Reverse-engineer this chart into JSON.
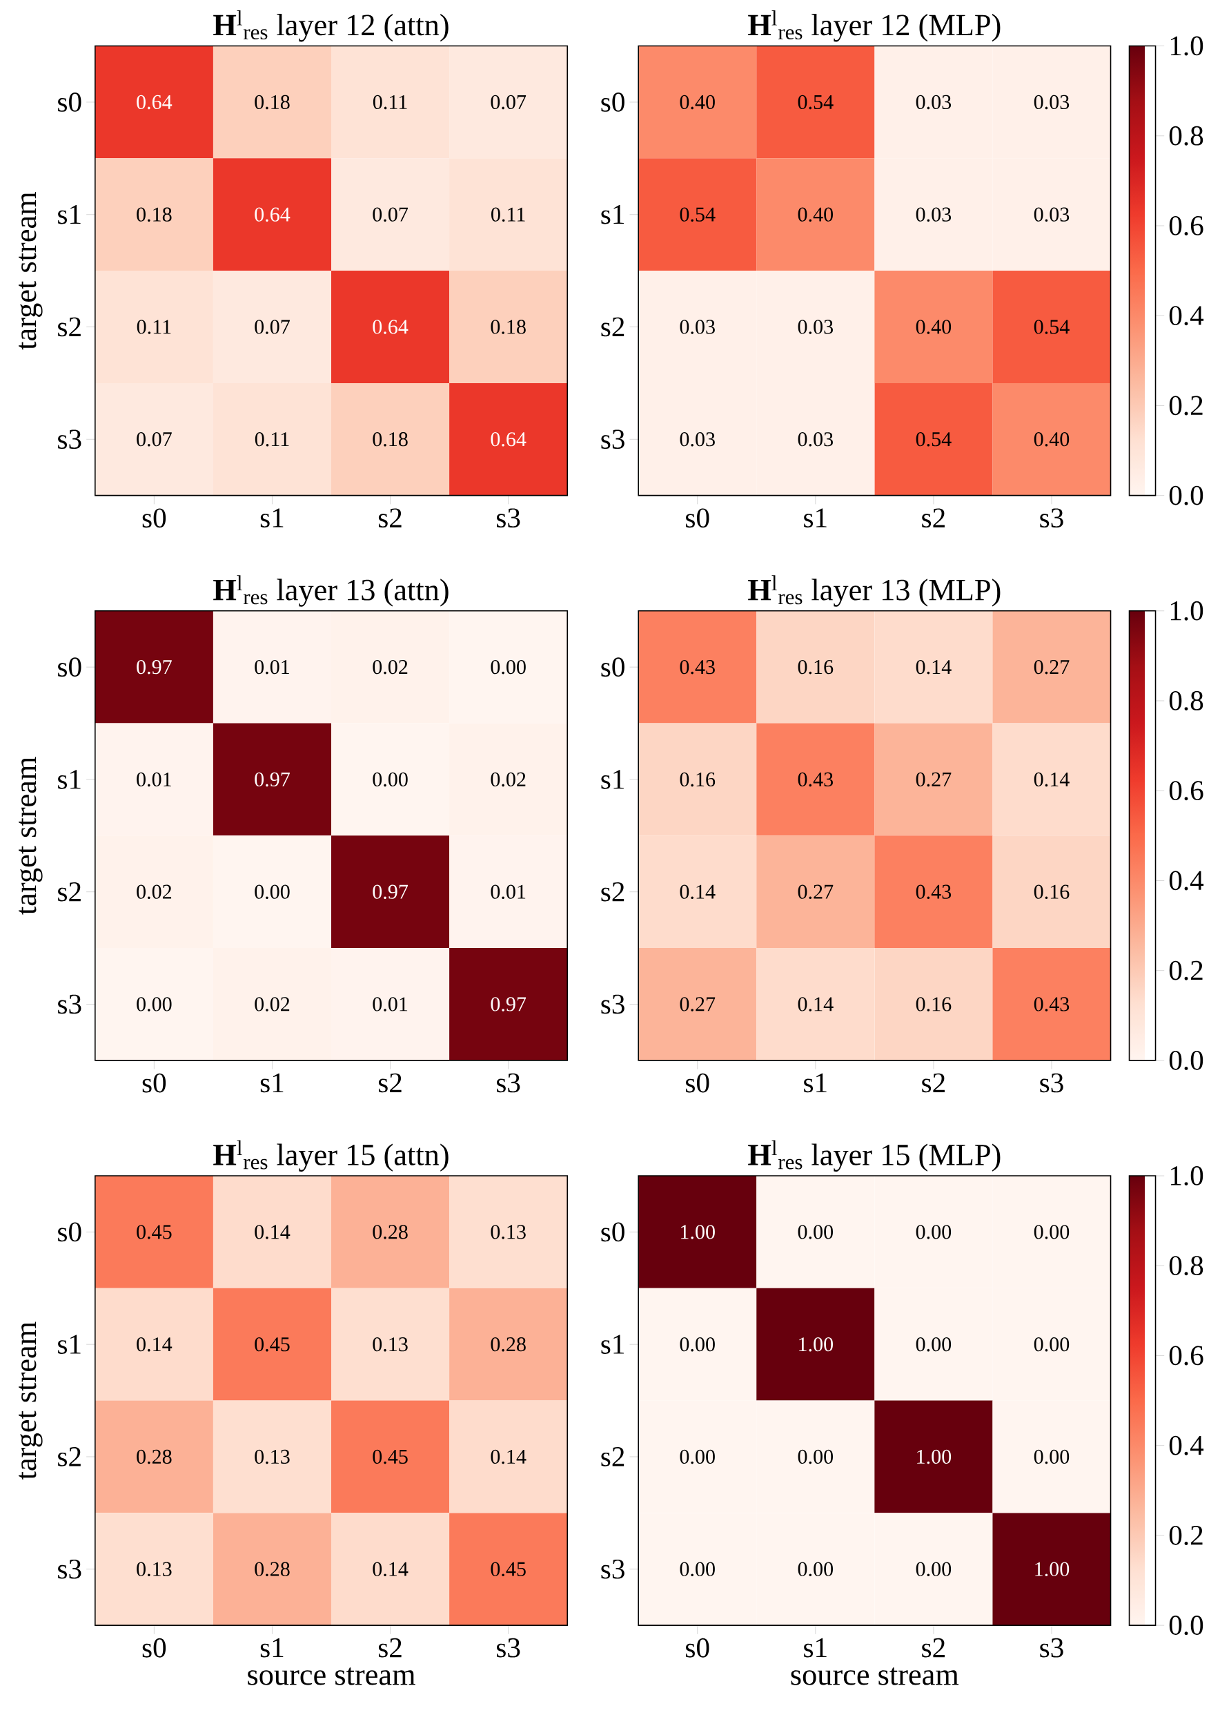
{
  "chart_data": [
    {
      "type": "heatmap",
      "title": "**H**$^{l}$$_{res}$ layer 12 (attn)",
      "ylabel": "target stream",
      "categories": [
        "s0",
        "s1",
        "s2",
        "s3"
      ],
      "y_categories": [
        "s0",
        "s1",
        "s2",
        "s3"
      ],
      "cells": [
        [
          0.64,
          0.18,
          0.11,
          0.07
        ],
        [
          0.18,
          0.64,
          0.07,
          0.11
        ],
        [
          0.11,
          0.07,
          0.64,
          0.18
        ],
        [
          0.07,
          0.11,
          0.18,
          0.64
        ]
      ],
      "cell_labels": [
        [
          "0.64",
          "0.18",
          "0.11",
          "0.07"
        ],
        [
          "0.18",
          "0.64",
          "0.07",
          "0.11"
        ],
        [
          "0.11",
          "0.07",
          "0.64",
          "0.18"
        ],
        [
          "0.07",
          "0.11",
          "0.18",
          "0.64"
        ]
      ]
    },
    {
      "type": "heatmap",
      "title": "**H**$^{l}$$_{res}$ layer 12 (MLP)",
      "categories": [
        "s0",
        "s1",
        "s2",
        "s3"
      ],
      "y_categories": [
        "s0",
        "s1",
        "s2",
        "s3"
      ],
      "clim": [
        0,
        1
      ],
      "cticks": [
        {
          "value": 0,
          "label": "0.0"
        },
        {
          "value": 0.2,
          "label": "0.2"
        },
        {
          "value": 0.4,
          "label": "0.4"
        },
        {
          "value": 0.6,
          "label": "0.6"
        },
        {
          "value": 0.8,
          "label": "0.8"
        },
        {
          "value": 1,
          "label": "1.0"
        }
      ],
      "cells": [
        [
          0.4,
          0.54,
          0.03,
          0.03
        ],
        [
          0.54,
          0.4,
          0.03,
          0.03
        ],
        [
          0.03,
          0.03,
          0.4,
          0.54
        ],
        [
          0.03,
          0.03,
          0.54,
          0.4
        ]
      ],
      "cell_labels": [
        [
          "0.40",
          "0.54",
          "0.03",
          "0.03"
        ],
        [
          "0.54",
          "0.40",
          "0.03",
          "0.03"
        ],
        [
          "0.03",
          "0.03",
          "0.40",
          "0.54"
        ],
        [
          "0.03",
          "0.03",
          "0.54",
          "0.40"
        ]
      ]
    },
    {
      "type": "heatmap",
      "title": "**H**$^{l}$$_{res}$ layer 13 (attn)",
      "ylabel": "target stream",
      "categories": [
        "s0",
        "s1",
        "s2",
        "s3"
      ],
      "y_categories": [
        "s0",
        "s1",
        "s2",
        "s3"
      ],
      "cells": [
        [
          0.97,
          0.01,
          0.02,
          0.0
        ],
        [
          0.01,
          0.97,
          0.0,
          0.02
        ],
        [
          0.02,
          0.0,
          0.97,
          0.01
        ],
        [
          0.0,
          0.02,
          0.01,
          0.97
        ]
      ],
      "cell_labels": [
        [
          "0.97",
          "0.01",
          "0.02",
          "0.00"
        ],
        [
          "0.01",
          "0.97",
          "0.00",
          "0.02"
        ],
        [
          "0.02",
          "0.00",
          "0.97",
          "0.01"
        ],
        [
          "0.00",
          "0.02",
          "0.01",
          "0.97"
        ]
      ]
    },
    {
      "type": "heatmap",
      "title": "**H**$^{l}$$_{res}$ layer 13 (MLP)",
      "categories": [
        "s0",
        "s1",
        "s2",
        "s3"
      ],
      "y_categories": [
        "s0",
        "s1",
        "s2",
        "s3"
      ],
      "clim": [
        0,
        1
      ],
      "cticks": [
        {
          "value": 0,
          "label": "0.0"
        },
        {
          "value": 0.2,
          "label": "0.2"
        },
        {
          "value": 0.4,
          "label": "0.4"
        },
        {
          "value": 0.6,
          "label": "0.6"
        },
        {
          "value": 0.8,
          "label": "0.8"
        },
        {
          "value": 1,
          "label": "1.0"
        }
      ],
      "cells": [
        [
          0.43,
          0.16,
          0.14,
          0.27
        ],
        [
          0.16,
          0.43,
          0.27,
          0.14
        ],
        [
          0.14,
          0.27,
          0.43,
          0.16
        ],
        [
          0.27,
          0.14,
          0.16,
          0.43
        ]
      ],
      "cell_labels": [
        [
          "0.43",
          "0.16",
          "0.14",
          "0.27"
        ],
        [
          "0.16",
          "0.43",
          "0.27",
          "0.14"
        ],
        [
          "0.14",
          "0.27",
          "0.43",
          "0.16"
        ],
        [
          "0.27",
          "0.14",
          "0.16",
          "0.43"
        ]
      ]
    },
    {
      "type": "heatmap",
      "title": "**H**$^{l}$$_{res}$ layer 15 (attn)",
      "xlabel": "source stream",
      "ylabel": "target stream",
      "categories": [
        "s0",
        "s1",
        "s2",
        "s3"
      ],
      "y_categories": [
        "s0",
        "s1",
        "s2",
        "s3"
      ],
      "cells": [
        [
          0.45,
          0.14,
          0.28,
          0.13
        ],
        [
          0.14,
          0.45,
          0.13,
          0.28
        ],
        [
          0.28,
          0.13,
          0.45,
          0.14
        ],
        [
          0.13,
          0.28,
          0.14,
          0.45
        ]
      ],
      "cell_labels": [
        [
          "0.45",
          "0.14",
          "0.28",
          "0.13"
        ],
        [
          "0.14",
          "0.45",
          "0.13",
          "0.28"
        ],
        [
          "0.28",
          "0.13",
          "0.45",
          "0.14"
        ],
        [
          "0.13",
          "0.28",
          "0.14",
          "0.45"
        ]
      ]
    },
    {
      "type": "heatmap",
      "title": "**H**$^{l}$$_{res}$ layer 15 (MLP)",
      "xlabel": "source stream",
      "categories": [
        "s0",
        "s1",
        "s2",
        "s3"
      ],
      "y_categories": [
        "s0",
        "s1",
        "s2",
        "s3"
      ],
      "clim": [
        0,
        1
      ],
      "cticks": [
        {
          "value": 0,
          "label": "0.0"
        },
        {
          "value": 0.2,
          "label": "0.2"
        },
        {
          "value": 0.4,
          "label": "0.4"
        },
        {
          "value": 0.6,
          "label": "0.6"
        },
        {
          "value": 0.8,
          "label": "0.8"
        },
        {
          "value": 1,
          "label": "1.0"
        }
      ],
      "cells": [
        [
          1.0,
          0.0,
          0.0,
          0.0
        ],
        [
          0.0,
          1.0,
          0.0,
          0.0
        ],
        [
          0.0,
          0.0,
          1.0,
          0.0
        ],
        [
          0.0,
          0.0,
          0.0,
          1.0
        ]
      ],
      "cell_labels": [
        [
          "1.00",
          "0.00",
          "0.00",
          "0.00"
        ],
        [
          "0.00",
          "1.00",
          "0.00",
          "0.00"
        ],
        [
          "0.00",
          "0.00",
          "1.00",
          "0.00"
        ],
        [
          "0.00",
          "0.00",
          "0.00",
          "1.00"
        ]
      ]
    }
  ]
}
